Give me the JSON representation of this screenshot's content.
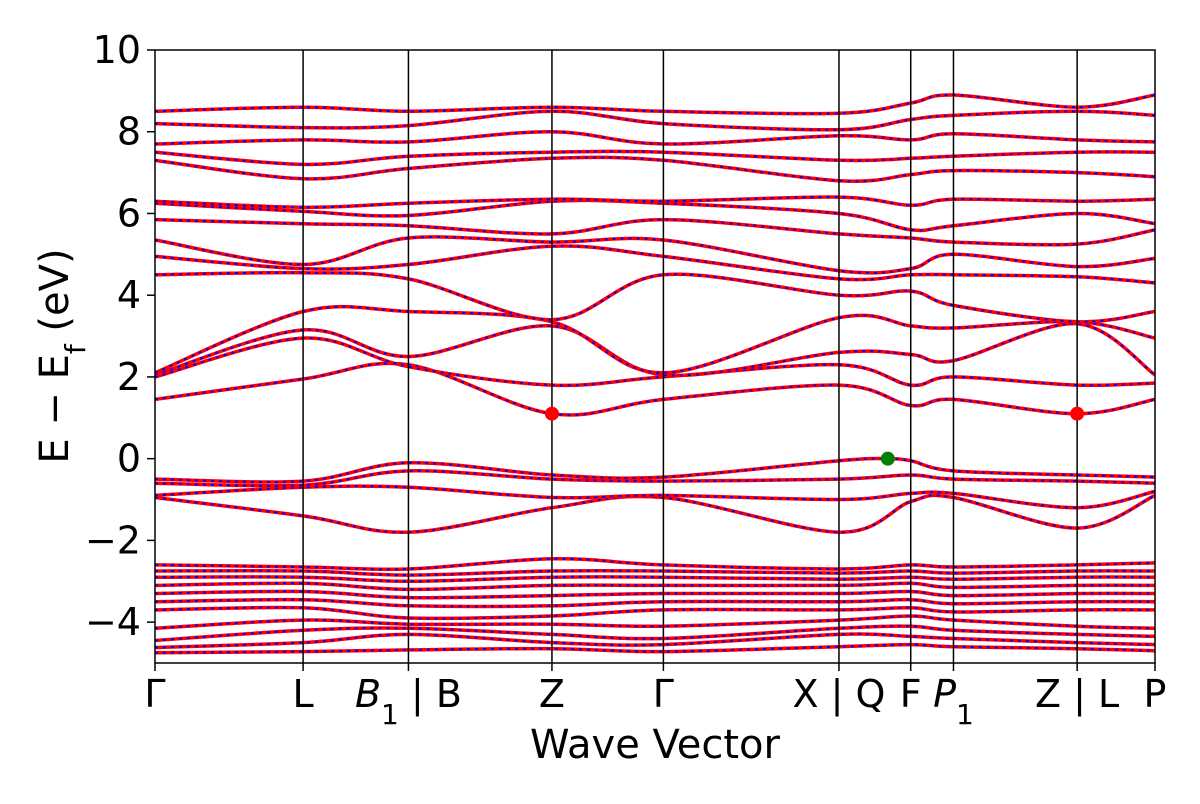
{
  "chart_data": {
    "type": "line",
    "xlabel": "Wave Vector",
    "ylabel": "E − E",
    "ylabel_sub": "f",
    "ylabel_unit": " (eV)",
    "ylim": [
      -5,
      10
    ],
    "yticks": [
      -4,
      -2,
      0,
      2,
      4,
      6,
      8,
      10
    ],
    "ytick_labels": [
      "−4",
      "−2",
      "0",
      "2",
      "4",
      "6",
      "8",
      "10"
    ],
    "kpath": [
      {
        "x": 0.0,
        "label": "Γ"
      },
      {
        "x": 0.97,
        "label": "L"
      },
      {
        "x": 1.66,
        "label": "B",
        "sub": "1",
        "suffix": " | B"
      },
      {
        "x": 2.6,
        "label": "Z"
      },
      {
        "x": 3.33,
        "label": "Γ"
      },
      {
        "x": 4.48,
        "label": "X | Q"
      },
      {
        "x": 4.95,
        "label": "F"
      },
      {
        "x": 5.23,
        "label": "P",
        "sub": "1"
      },
      {
        "x": 6.04,
        "label": "Z | L"
      },
      {
        "x": 6.55,
        "label": "P"
      }
    ],
    "xlim": [
      0,
      6.55
    ],
    "series_colors": {
      "band_solid": "#ff0000",
      "band_dashed": "#0000ff",
      "vline": "#000000"
    },
    "markers": [
      {
        "name": "CBM",
        "x": 2.6,
        "y": 1.1,
        "color": "#ff0000"
      },
      {
        "name": "VBM",
        "x": 4.8,
        "y": 0.0,
        "color": "#008000"
      },
      {
        "name": "CBM",
        "x": 6.04,
        "y": 1.1,
        "color": "#ff0000"
      }
    ],
    "bands": [
      [
        [
          0,
          -4.75
        ],
        [
          0.97,
          -4.72
        ],
        [
          1.66,
          -4.68
        ],
        [
          2.6,
          -4.65
        ],
        [
          3.33,
          -4.72
        ],
        [
          4.48,
          -4.6
        ],
        [
          4.95,
          -4.55
        ],
        [
          5.23,
          -4.6
        ],
        [
          6.04,
          -4.65
        ],
        [
          6.55,
          -4.7
        ]
      ],
      [
        [
          0,
          -4.62
        ],
        [
          0.97,
          -4.5
        ],
        [
          1.66,
          -4.3
        ],
        [
          2.6,
          -4.5
        ],
        [
          3.33,
          -4.55
        ],
        [
          4.48,
          -4.3
        ],
        [
          4.95,
          -4.35
        ],
        [
          5.23,
          -4.4
        ],
        [
          6.04,
          -4.5
        ],
        [
          6.55,
          -4.55
        ]
      ],
      [
        [
          0,
          -4.45
        ],
        [
          0.97,
          -4.2
        ],
        [
          1.66,
          -4.15
        ],
        [
          2.6,
          -4.3
        ],
        [
          3.33,
          -4.4
        ],
        [
          4.48,
          -4.15
        ],
        [
          4.95,
          -4.1
        ],
        [
          5.23,
          -4.2
        ],
        [
          6.04,
          -4.3
        ],
        [
          6.55,
          -4.35
        ]
      ],
      [
        [
          0,
          -4.15
        ],
        [
          0.97,
          -3.95
        ],
        [
          1.66,
          -4.05
        ],
        [
          2.6,
          -4.05
        ],
        [
          3.33,
          -4.1
        ],
        [
          4.48,
          -3.95
        ],
        [
          4.95,
          -3.85
        ],
        [
          5.23,
          -3.95
        ],
        [
          6.04,
          -4.1
        ],
        [
          6.55,
          -4.15
        ]
      ],
      [
        [
          0,
          -3.7
        ],
        [
          0.97,
          -3.65
        ],
        [
          1.66,
          -3.9
        ],
        [
          2.6,
          -3.85
        ],
        [
          3.33,
          -3.7
        ],
        [
          4.48,
          -3.7
        ],
        [
          4.95,
          -3.65
        ],
        [
          5.23,
          -3.75
        ],
        [
          6.04,
          -3.7
        ],
        [
          6.55,
          -3.7
        ]
      ],
      [
        [
          0,
          -3.5
        ],
        [
          0.97,
          -3.45
        ],
        [
          1.66,
          -3.6
        ],
        [
          2.6,
          -3.6
        ],
        [
          3.33,
          -3.5
        ],
        [
          4.48,
          -3.5
        ],
        [
          4.95,
          -3.45
        ],
        [
          5.23,
          -3.55
        ],
        [
          6.04,
          -3.5
        ],
        [
          6.55,
          -3.5
        ]
      ],
      [
        [
          0,
          -3.3
        ],
        [
          0.97,
          -3.25
        ],
        [
          1.66,
          -3.4
        ],
        [
          2.6,
          -3.35
        ],
        [
          3.33,
          -3.3
        ],
        [
          4.48,
          -3.3
        ],
        [
          4.95,
          -3.25
        ],
        [
          5.23,
          -3.35
        ],
        [
          6.04,
          -3.3
        ],
        [
          6.55,
          -3.3
        ]
      ],
      [
        [
          0,
          -3.1
        ],
        [
          0.97,
          -3.05
        ],
        [
          1.66,
          -3.2
        ],
        [
          2.6,
          -3.1
        ],
        [
          3.33,
          -3.1
        ],
        [
          4.48,
          -3.1
        ],
        [
          4.95,
          -3.05
        ],
        [
          5.23,
          -3.15
        ],
        [
          6.04,
          -3.1
        ],
        [
          6.55,
          -3.1
        ]
      ],
      [
        [
          0,
          -2.9
        ],
        [
          0.97,
          -2.9
        ],
        [
          1.66,
          -3.0
        ],
        [
          2.6,
          -2.9
        ],
        [
          3.33,
          -2.9
        ],
        [
          4.48,
          -2.95
        ],
        [
          4.95,
          -2.9
        ],
        [
          5.23,
          -2.95
        ],
        [
          6.04,
          -2.9
        ],
        [
          6.55,
          -2.9
        ]
      ],
      [
        [
          0,
          -2.75
        ],
        [
          0.97,
          -2.75
        ],
        [
          1.66,
          -2.85
        ],
        [
          2.6,
          -2.75
        ],
        [
          3.33,
          -2.75
        ],
        [
          4.48,
          -2.8
        ],
        [
          4.95,
          -2.75
        ],
        [
          5.23,
          -2.8
        ],
        [
          6.04,
          -2.75
        ],
        [
          6.55,
          -2.75
        ]
      ],
      [
        [
          0,
          -2.6
        ],
        [
          0.97,
          -2.65
        ],
        [
          1.66,
          -2.7
        ],
        [
          2.6,
          -2.45
        ],
        [
          3.33,
          -2.6
        ],
        [
          4.48,
          -2.7
        ],
        [
          4.95,
          -2.6
        ],
        [
          5.23,
          -2.65
        ],
        [
          6.04,
          -2.6
        ],
        [
          6.55,
          -2.55
        ]
      ],
      [
        [
          0,
          -0.95
        ],
        [
          0.97,
          -1.4
        ],
        [
          1.66,
          -1.8
        ],
        [
          2.6,
          -1.2
        ],
        [
          3.33,
          -0.95
        ],
        [
          4.48,
          -1.8
        ],
        [
          4.95,
          -1.05
        ],
        [
          5.23,
          -0.95
        ],
        [
          6.04,
          -1.7
        ],
        [
          6.55,
          -0.9
        ]
      ],
      [
        [
          0,
          -0.9
        ],
        [
          0.97,
          -0.7
        ],
        [
          1.66,
          -0.7
        ],
        [
          2.6,
          -0.95
        ],
        [
          3.33,
          -0.9
        ],
        [
          4.48,
          -1.0
        ],
        [
          4.95,
          -0.85
        ],
        [
          5.23,
          -0.85
        ],
        [
          6.04,
          -1.2
        ],
        [
          6.55,
          -0.8
        ]
      ],
      [
        [
          0,
          -0.6
        ],
        [
          0.97,
          -0.65
        ],
        [
          1.66,
          -0.3
        ],
        [
          2.6,
          -0.5
        ],
        [
          3.33,
          -0.55
        ],
        [
          4.48,
          -0.5
        ],
        [
          4.95,
          -0.4
        ],
        [
          5.23,
          -0.5
        ],
        [
          6.04,
          -0.55
        ],
        [
          6.55,
          -0.6
        ]
      ],
      [
        [
          0,
          -0.5
        ],
        [
          0.97,
          -0.55
        ],
        [
          1.66,
          -0.1
        ],
        [
          2.6,
          -0.4
        ],
        [
          3.33,
          -0.45
        ],
        [
          4.48,
          -0.05
        ],
        [
          4.8,
          0.0
        ],
        [
          4.95,
          -0.05
        ],
        [
          5.23,
          -0.3
        ],
        [
          6.04,
          -0.4
        ],
        [
          6.55,
          -0.45
        ]
      ],
      [
        [
          0,
          1.45
        ],
        [
          0.97,
          1.95
        ],
        [
          1.66,
          2.3
        ],
        [
          2.6,
          1.1
        ],
        [
          3.33,
          1.45
        ],
        [
          4.48,
          1.8
        ],
        [
          4.95,
          1.3
        ],
        [
          5.23,
          1.45
        ],
        [
          6.04,
          1.1
        ],
        [
          6.55,
          1.45
        ]
      ],
      [
        [
          0,
          2.0
        ],
        [
          0.97,
          2.95
        ],
        [
          1.66,
          2.25
        ],
        [
          2.6,
          1.8
        ],
        [
          3.33,
          2.0
        ],
        [
          4.48,
          2.3
        ],
        [
          4.95,
          1.8
        ],
        [
          5.23,
          2.0
        ],
        [
          6.04,
          1.8
        ],
        [
          6.55,
          1.85
        ]
      ],
      [
        [
          0,
          2.05
        ],
        [
          0.97,
          3.15
        ],
        [
          1.66,
          2.5
        ],
        [
          2.6,
          3.25
        ],
        [
          3.33,
          2.05
        ],
        [
          4.48,
          2.6
        ],
        [
          4.95,
          2.55
        ],
        [
          5.23,
          2.4
        ],
        [
          6.04,
          3.3
        ],
        [
          6.55,
          2.05
        ]
      ],
      [
        [
          0,
          2.1
        ],
        [
          0.97,
          3.6
        ],
        [
          1.66,
          3.6
        ],
        [
          2.6,
          3.35
        ],
        [
          3.33,
          2.1
        ],
        [
          4.48,
          3.45
        ],
        [
          4.95,
          3.25
        ],
        [
          5.23,
          3.2
        ],
        [
          6.04,
          3.35
        ],
        [
          6.55,
          2.95
        ]
      ],
      [
        [
          0,
          4.5
        ],
        [
          0.97,
          4.55
        ],
        [
          1.66,
          4.4
        ],
        [
          2.6,
          3.4
        ],
        [
          3.33,
          4.5
        ],
        [
          4.48,
          4.0
        ],
        [
          4.95,
          4.1
        ],
        [
          5.23,
          3.75
        ],
        [
          6.04,
          3.35
        ],
        [
          6.55,
          3.6
        ]
      ],
      [
        [
          0,
          4.95
        ],
        [
          0.97,
          4.65
        ],
        [
          1.66,
          4.75
        ],
        [
          2.6,
          5.2
        ],
        [
          3.33,
          4.95
        ],
        [
          4.48,
          4.4
        ],
        [
          4.95,
          4.5
        ],
        [
          5.23,
          4.5
        ],
        [
          6.04,
          4.45
        ],
        [
          6.55,
          4.3
        ]
      ],
      [
        [
          0,
          5.35
        ],
        [
          0.97,
          4.75
        ],
        [
          1.66,
          5.4
        ],
        [
          2.6,
          5.3
        ],
        [
          3.33,
          5.35
        ],
        [
          4.48,
          4.6
        ],
        [
          4.95,
          4.65
        ],
        [
          5.23,
          5.0
        ],
        [
          6.04,
          4.7
        ],
        [
          6.55,
          4.9
        ]
      ],
      [
        [
          0,
          5.85
        ],
        [
          0.97,
          5.75
        ],
        [
          1.66,
          5.7
        ],
        [
          2.6,
          5.5
        ],
        [
          3.33,
          5.85
        ],
        [
          4.48,
          5.5
        ],
        [
          4.95,
          5.4
        ],
        [
          5.23,
          5.3
        ],
        [
          6.04,
          5.25
        ],
        [
          6.55,
          5.6
        ]
      ],
      [
        [
          0,
          6.25
        ],
        [
          0.97,
          6.05
        ],
        [
          1.66,
          5.95
        ],
        [
          2.6,
          6.3
        ],
        [
          3.33,
          6.25
        ],
        [
          4.48,
          6.0
        ],
        [
          4.95,
          5.6
        ],
        [
          5.23,
          5.7
        ],
        [
          6.04,
          6.0
        ],
        [
          6.55,
          5.75
        ]
      ],
      [
        [
          0,
          6.3
        ],
        [
          0.97,
          6.15
        ],
        [
          1.66,
          6.25
        ],
        [
          2.6,
          6.35
        ],
        [
          3.33,
          6.3
        ],
        [
          4.48,
          6.4
        ],
        [
          4.95,
          6.2
        ],
        [
          5.23,
          6.35
        ],
        [
          6.04,
          6.3
        ],
        [
          6.55,
          6.35
        ]
      ],
      [
        [
          0,
          7.3
        ],
        [
          0.97,
          6.85
        ],
        [
          1.66,
          7.1
        ],
        [
          2.6,
          7.35
        ],
        [
          3.33,
          7.3
        ],
        [
          4.48,
          6.8
        ],
        [
          4.95,
          6.95
        ],
        [
          5.23,
          7.05
        ],
        [
          6.04,
          7.0
        ],
        [
          6.55,
          6.9
        ]
      ],
      [
        [
          0,
          7.5
        ],
        [
          0.97,
          7.2
        ],
        [
          1.66,
          7.4
        ],
        [
          2.6,
          7.5
        ],
        [
          3.33,
          7.5
        ],
        [
          4.48,
          7.3
        ],
        [
          4.95,
          7.35
        ],
        [
          5.23,
          7.4
        ],
        [
          6.04,
          7.5
        ],
        [
          6.55,
          7.5
        ]
      ],
      [
        [
          0,
          7.7
        ],
        [
          0.97,
          7.8
        ],
        [
          1.66,
          7.75
        ],
        [
          2.6,
          8.0
        ],
        [
          3.33,
          7.7
        ],
        [
          4.48,
          7.9
        ],
        [
          4.95,
          7.8
        ],
        [
          5.23,
          7.95
        ],
        [
          6.04,
          7.8
        ],
        [
          6.55,
          7.75
        ]
      ],
      [
        [
          0,
          8.2
        ],
        [
          0.97,
          8.1
        ],
        [
          1.66,
          8.15
        ],
        [
          2.6,
          8.5
        ],
        [
          3.33,
          8.2
        ],
        [
          4.48,
          8.05
        ],
        [
          4.95,
          8.3
        ],
        [
          5.23,
          8.4
        ],
        [
          6.04,
          8.5
        ],
        [
          6.55,
          8.4
        ]
      ],
      [
        [
          0,
          8.5
        ],
        [
          0.97,
          8.6
        ],
        [
          1.66,
          8.5
        ],
        [
          2.6,
          8.6
        ],
        [
          3.33,
          8.5
        ],
        [
          4.48,
          8.45
        ],
        [
          4.95,
          8.7
        ],
        [
          5.23,
          8.9
        ],
        [
          6.04,
          8.6
        ],
        [
          6.55,
          8.9
        ]
      ]
    ]
  }
}
